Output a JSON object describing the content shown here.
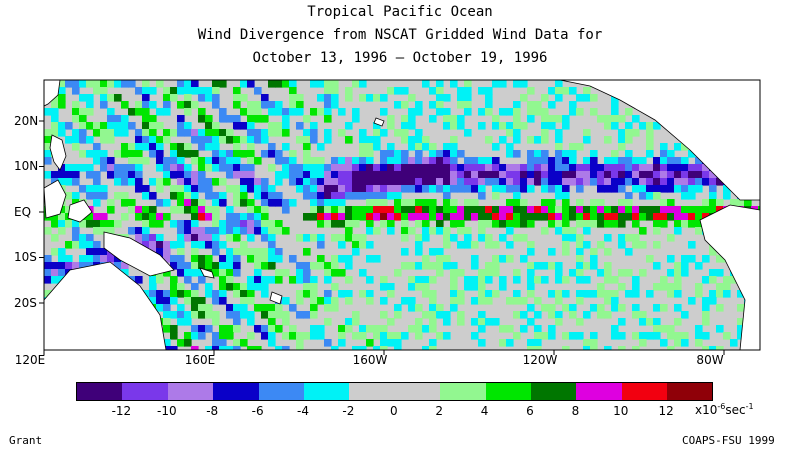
{
  "title": {
    "line1": "Tropical Pacific Ocean",
    "line2": "Wind Divergence from NSCAT Gridded Wind Data for",
    "line3": "October 13, 1996 – October 19, 1996"
  },
  "map": {
    "lat_labels": [
      "20N",
      "10N",
      "EQ",
      "10S",
      "20S"
    ],
    "lon_labels": [
      "120E",
      "160E",
      "160W",
      "120W",
      "80W"
    ]
  },
  "colorbar": {
    "colors": [
      "#3f0079",
      "#7a38ea",
      "#ad7ae8",
      "#0a00c8",
      "#3c89f4",
      "#00f2f6",
      "#cdcdcd",
      "#cdcdcd",
      "#92f790",
      "#00e600",
      "#007600",
      "#de00e0",
      "#f20010",
      "#8f0008"
    ],
    "labels": [
      "-12",
      "-10",
      "-8",
      "-6",
      "-4",
      "-2",
      "0",
      "2",
      "4",
      "6",
      "8",
      "10",
      "12"
    ],
    "units_base": "x10",
    "units_exp": "-6",
    "units_tail": "sec",
    "units_tail_exp": "-1"
  },
  "footer": {
    "left": "Grant",
    "right": "COAPS-FSU 1999"
  }
}
